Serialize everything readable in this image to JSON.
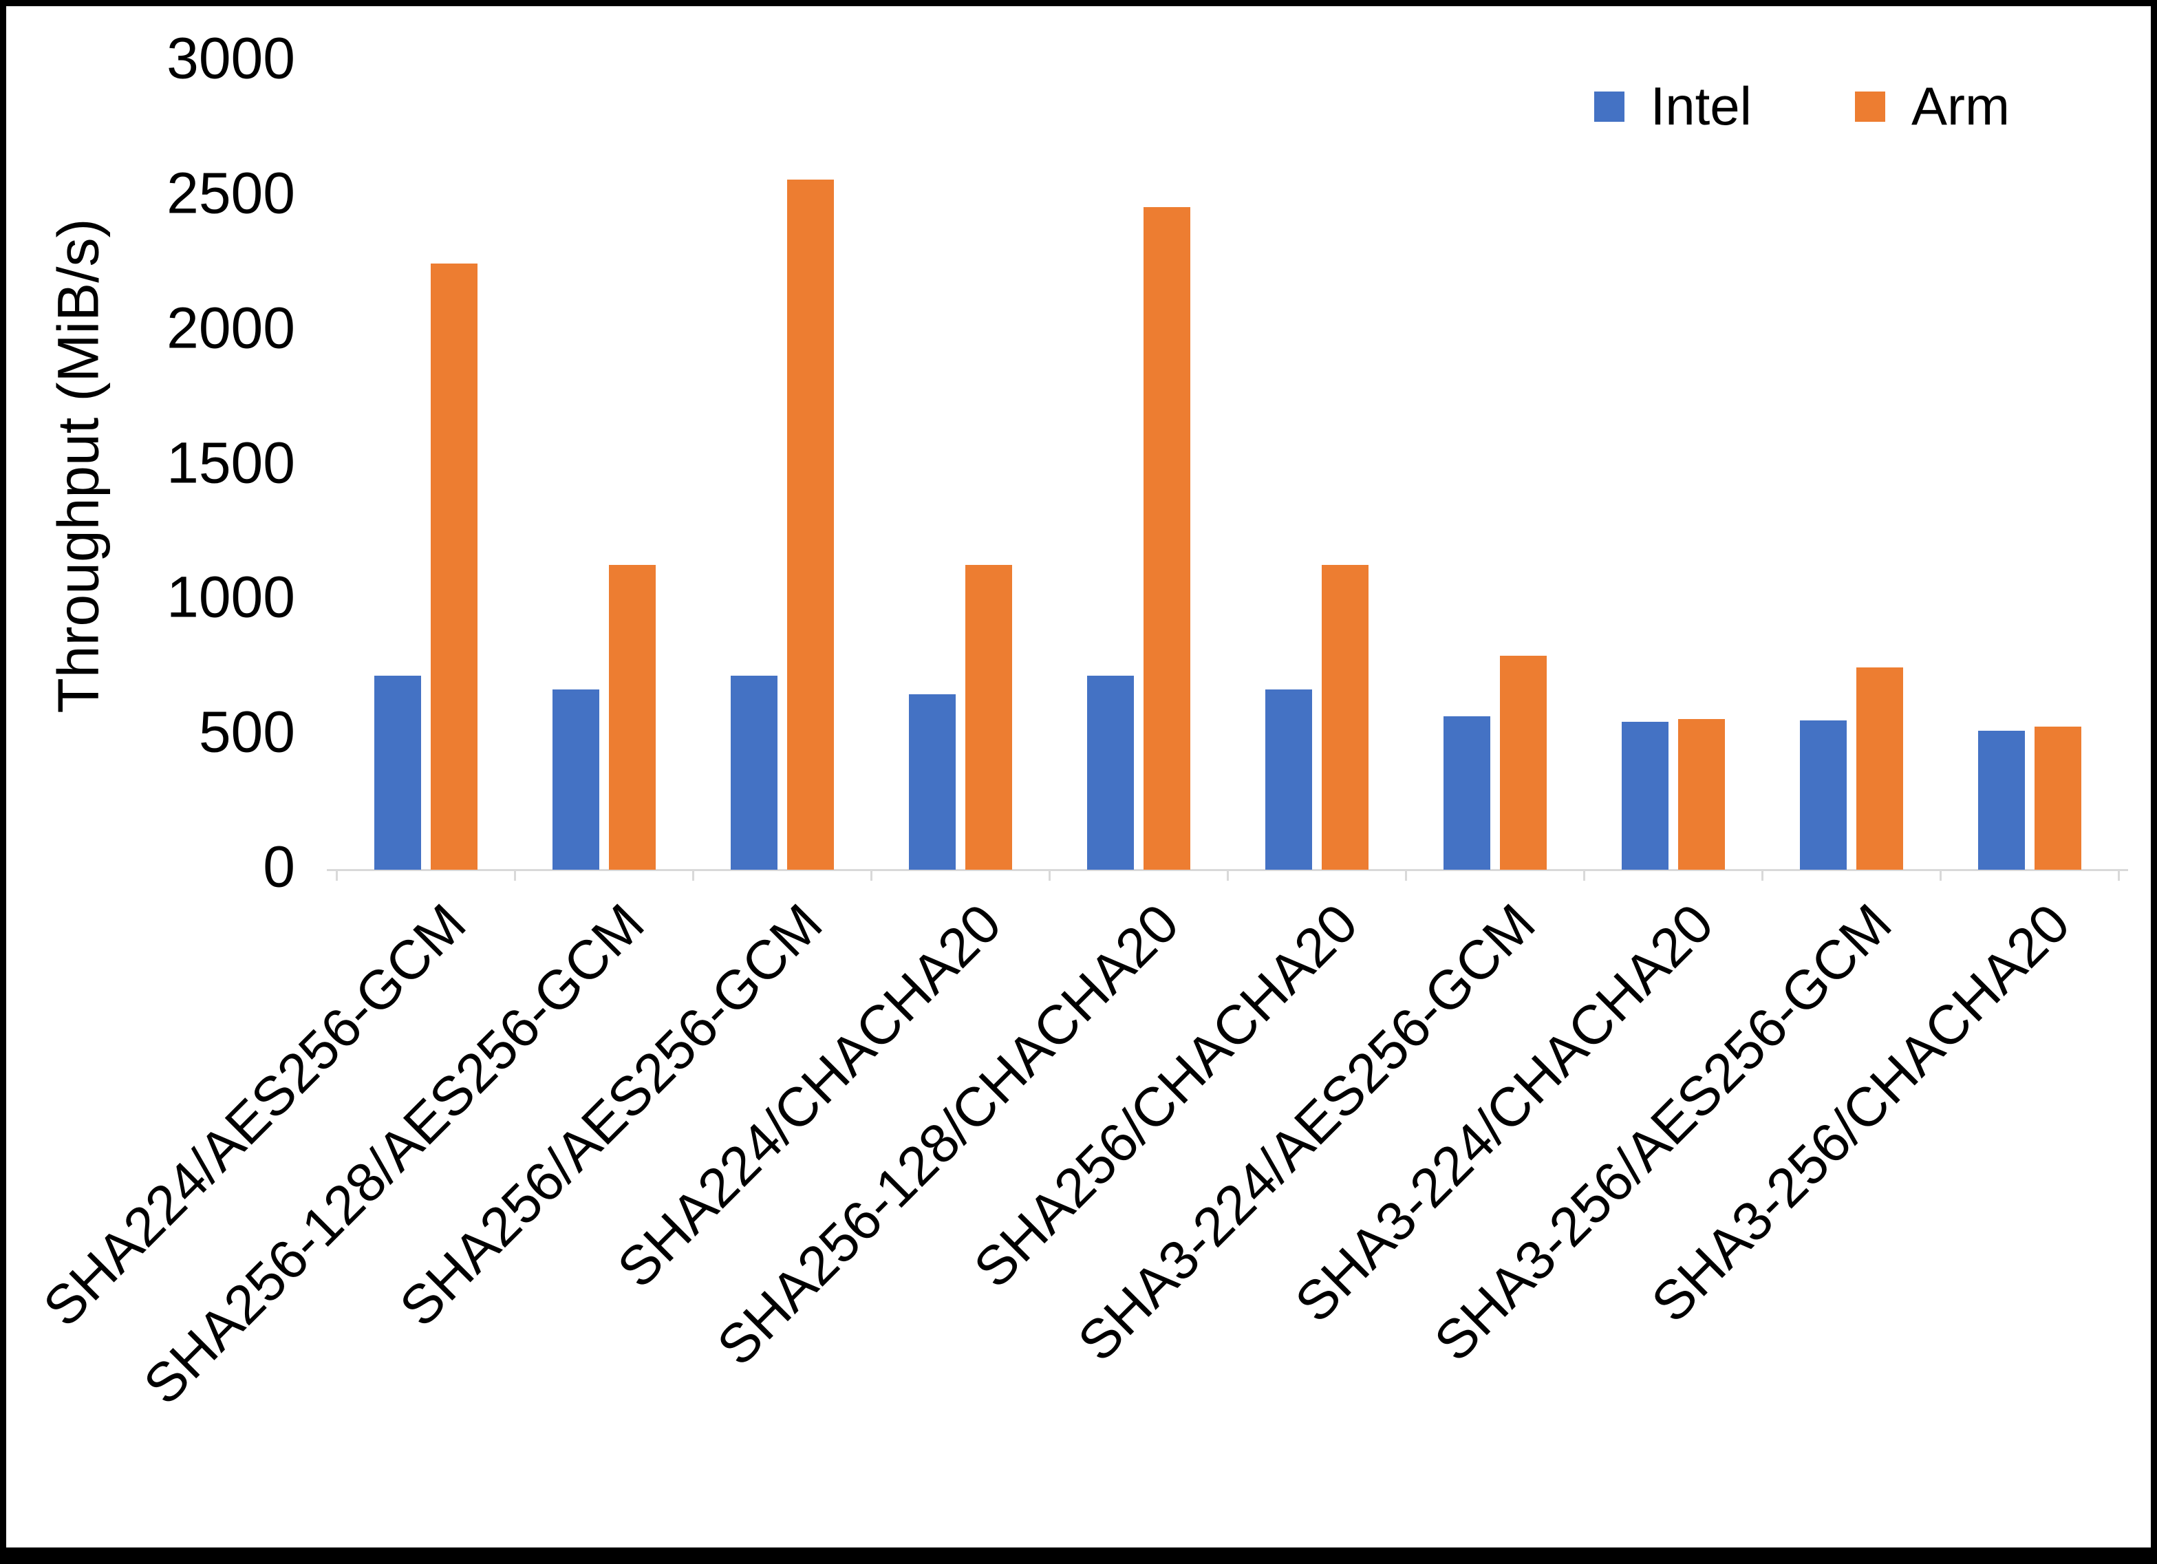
{
  "chart_data": {
    "type": "bar",
    "title": "",
    "ylabel": "Throughput (MiB/s)",
    "xlabel": "",
    "ylim": [
      0,
      3000
    ],
    "yticks": [
      0,
      500,
      1000,
      1500,
      2000,
      2500,
      3000
    ],
    "grid": false,
    "legend_position": "top-right",
    "categories": [
      "SHA224/AES256-GCM",
      "SHA256-128/AES256-GCM",
      "SHA256/AES256-GCM",
      "SHA224/CHACHA20",
      "SHA256-128/CHACHA20",
      "SHA256/CHACHA20",
      "SHA3-224/AES256-GCM",
      "SHA3-224/CHACHA20",
      "SHA3-256/AES256-GCM",
      "SHA3-256/CHACHA20"
    ],
    "series": [
      {
        "name": "Intel",
        "color": "#4472C4",
        "values": [
          720,
          670,
          720,
          650,
          720,
          670,
          570,
          550,
          555,
          515
        ]
      },
      {
        "name": "Arm",
        "color": "#ED7D31",
        "values": [
          2250,
          1130,
          2560,
          1130,
          2460,
          1130,
          795,
          560,
          750,
          530
        ]
      }
    ]
  }
}
